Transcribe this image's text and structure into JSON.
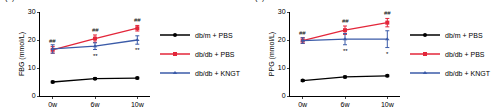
{
  "chart_data": [
    {
      "type": "line",
      "title": "(A)",
      "y_label": "FBG (mmol/L)",
      "categories": [
        "0w",
        "6w",
        "10w"
      ],
      "ylim": [
        0,
        30
      ],
      "yticks": [
        0,
        10,
        20,
        30
      ],
      "grid": false,
      "legend": "right",
      "series": [
        {
          "name": "db/m + PBS",
          "color": "#000000",
          "marker": "circle",
          "values": [
            5.0,
            6.2,
            6.4
          ],
          "error": [
            0.3,
            0.3,
            0.3
          ]
        },
        {
          "name": "db/db + PBS",
          "color": "#e3263a",
          "marker": "square",
          "values": [
            16.5,
            20.5,
            24.2
          ],
          "error": [
            1.2,
            1.3,
            1.0
          ]
        },
        {
          "name": "db/db + KNGT",
          "color": "#3b5ba8",
          "marker": "triangle-up",
          "values": [
            16.8,
            17.8,
            20.0
          ],
          "error": [
            1.5,
            1.2,
            1.5
          ]
        }
      ],
      "annotations": [
        {
          "text": "##",
          "series": "db/db + PBS",
          "category": "0w",
          "position": "above"
        },
        {
          "text": "##",
          "series": "db/db + PBS",
          "category": "6w",
          "position": "above"
        },
        {
          "text": "##",
          "series": "db/db + PBS",
          "category": "10w",
          "position": "above"
        },
        {
          "text": "**",
          "series": "db/db + KNGT",
          "category": "6w",
          "position": "below"
        },
        {
          "text": "**",
          "series": "db/db + KNGT",
          "category": "10w",
          "position": "below"
        }
      ]
    },
    {
      "type": "line",
      "title": "(B)",
      "y_label": "PPG (mmol/L)",
      "categories": [
        "0w",
        "6w",
        "10w"
      ],
      "ylim": [
        0,
        30
      ],
      "yticks": [
        0,
        10,
        20,
        30
      ],
      "grid": false,
      "legend": "right",
      "series": [
        {
          "name": "db/m + PBS",
          "color": "#000000",
          "marker": "circle",
          "values": [
            5.5,
            6.8,
            7.2
          ],
          "error": [
            0.3,
            0.3,
            0.3
          ]
        },
        {
          "name": "db/db + PBS",
          "color": "#e3263a",
          "marker": "square",
          "values": [
            19.8,
            23.5,
            26.2
          ],
          "error": [
            1.0,
            1.5,
            1.5
          ]
        },
        {
          "name": "db/db + KNGT",
          "color": "#3b5ba8",
          "marker": "triangle-up",
          "values": [
            19.8,
            20.3,
            20.3
          ],
          "error": [
            1.0,
            2.0,
            3.0
          ]
        }
      ],
      "annotations": [
        {
          "text": "##",
          "series": "db/db + PBS",
          "category": "0w",
          "position": "above"
        },
        {
          "text": "##",
          "series": "db/db + PBS",
          "category": "6w",
          "position": "above"
        },
        {
          "text": "##",
          "series": "db/db + PBS",
          "category": "10w",
          "position": "above"
        },
        {
          "text": "**",
          "series": "db/db + KNGT",
          "category": "6w",
          "position": "below"
        },
        {
          "text": "*",
          "series": "db/db + KNGT",
          "category": "10w",
          "position": "below"
        }
      ]
    }
  ]
}
